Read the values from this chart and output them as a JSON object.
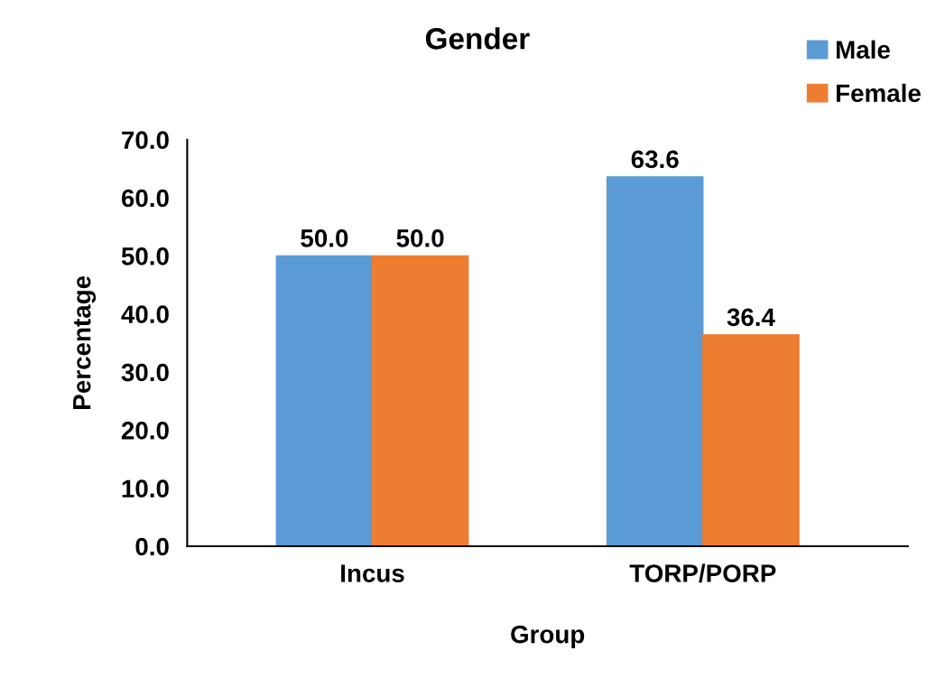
{
  "chart_data": {
    "type": "bar",
    "title": "Gender",
    "xlabel": "Group",
    "ylabel": "Percentage",
    "categories": [
      "Incus",
      "TORP/PORP"
    ],
    "series": [
      {
        "name": "Male",
        "color": "#5b9bd5",
        "values": [
          50.0,
          63.6
        ],
        "value_labels": [
          "50.0",
          "63.6"
        ]
      },
      {
        "name": "Female",
        "color": "#ed7d31",
        "values": [
          50.0,
          36.4
        ],
        "value_labels": [
          "50.0",
          "36.4"
        ]
      }
    ],
    "ylim": [
      0,
      70
    ],
    "yticks": [
      {
        "value": 0,
        "label": "0.0"
      },
      {
        "value": 10,
        "label": "10.0"
      },
      {
        "value": 20,
        "label": "20.0"
      },
      {
        "value": 30,
        "label": "30.0"
      },
      {
        "value": 40,
        "label": "40.0"
      },
      {
        "value": 50,
        "label": "50.0"
      },
      {
        "value": 60,
        "label": "60.0"
      },
      {
        "value": 70,
        "label": "70.0"
      }
    ],
    "legend": "top right",
    "grid": false
  }
}
